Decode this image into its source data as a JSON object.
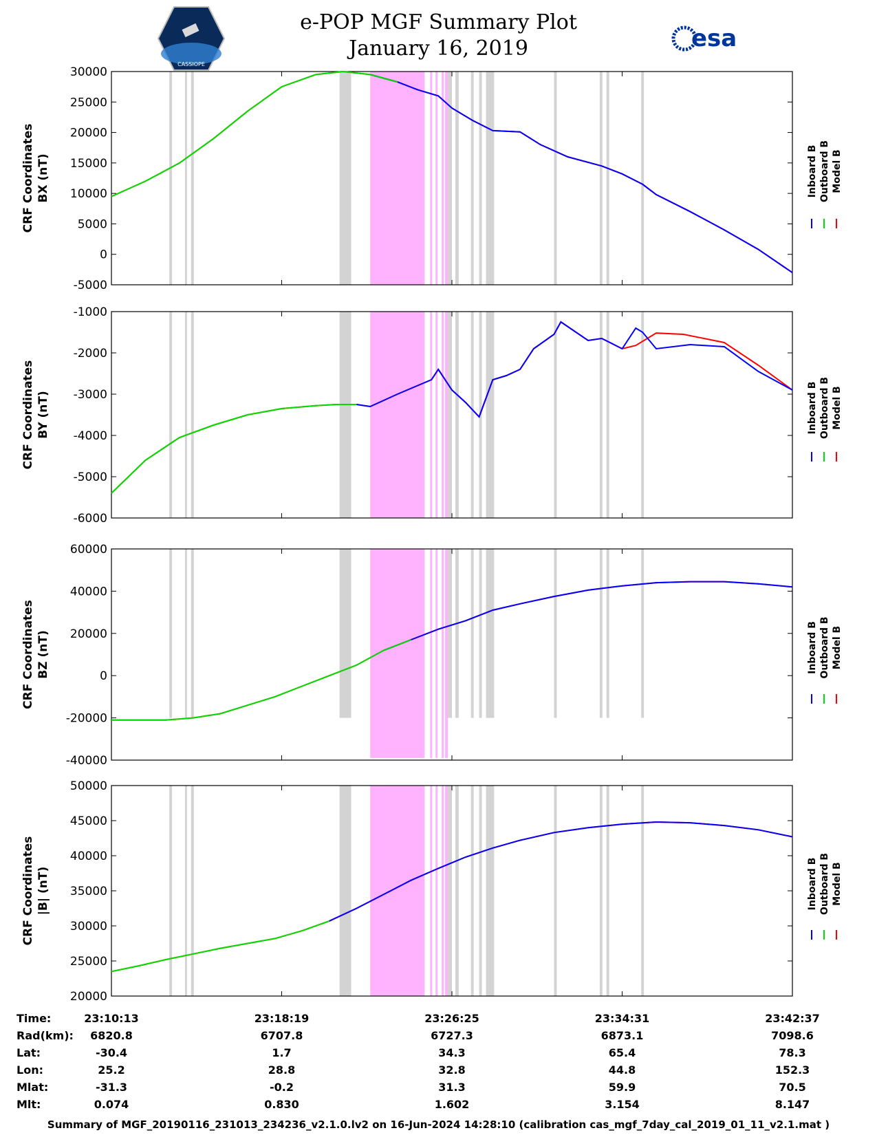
{
  "header": {
    "title": "e-POP MGF Summary Plot",
    "date": "January 16, 2019",
    "logo_left_text": "CASSIOPE",
    "logo_right_text": "esa"
  },
  "colors": {
    "inboard": "#0000ff",
    "outboard": "#00dd00",
    "model": "#ff0000",
    "gray_band": "#d3d3d3",
    "magenta_band": "#ffb3ff"
  },
  "legend": {
    "inboard": "Inboard B",
    "outboard": "Outboard B",
    "model": "Model B"
  },
  "chart_data": [
    {
      "type": "line",
      "ylabel_line1": "CRF Coordinates",
      "ylabel_line2": "BX (nT)",
      "ylim": [
        -5000,
        30000
      ],
      "yticks": [
        "30000",
        "25000",
        "20000",
        "15000",
        "10000",
        "5000",
        "0",
        "-5000"
      ],
      "ytick_values": [
        30000,
        25000,
        20000,
        15000,
        10000,
        5000,
        0,
        -5000
      ],
      "green_until": 0.42,
      "gray_band_to": "-5000",
      "model_deviation": [],
      "series_x": [
        0,
        0.05,
        0.1,
        0.15,
        0.2,
        0.25,
        0.3,
        0.34,
        0.38,
        0.42,
        0.45,
        0.48,
        0.5,
        0.53,
        0.56,
        0.6,
        0.63,
        0.67,
        0.72,
        0.75,
        0.78,
        0.8,
        0.85,
        0.9,
        0.95,
        1.0
      ],
      "series_y": [
        9500,
        12000,
        15000,
        19000,
        23500,
        27500,
        29500,
        30000,
        29500,
        28300,
        27000,
        26000,
        24000,
        22000,
        20300,
        20100,
        18000,
        16000,
        14500,
        13200,
        11500,
        9800,
        7000,
        4000,
        800,
        -3000
      ]
    },
    {
      "type": "line",
      "ylabel_line1": "CRF Coordinates",
      "ylabel_line2": "BY (nT)",
      "ylim": [
        -6000,
        -1000
      ],
      "yticks": [
        "-1000",
        "-2000",
        "-3000",
        "-4000",
        "-5000",
        "-6000"
      ],
      "ytick_values": [
        -1000,
        -2000,
        -3000,
        -4000,
        -5000,
        -6000
      ],
      "green_until": 0.36,
      "gray_band_to": "-6000",
      "model_deviation": [
        [
          0.77,
          -1820
        ],
        [
          0.8,
          -1520
        ],
        [
          0.84,
          -1550
        ],
        [
          0.9,
          -1750
        ],
        [
          0.95,
          -2300
        ]
      ],
      "series_x": [
        0,
        0.05,
        0.1,
        0.15,
        0.2,
        0.25,
        0.3,
        0.33,
        0.36,
        0.38,
        0.42,
        0.47,
        0.48,
        0.5,
        0.52,
        0.54,
        0.56,
        0.58,
        0.6,
        0.62,
        0.65,
        0.66,
        0.7,
        0.72,
        0.75,
        0.77,
        0.78,
        0.8,
        0.85,
        0.9,
        0.95,
        1.0
      ],
      "series_y": [
        -5400,
        -4600,
        -4050,
        -3750,
        -3500,
        -3350,
        -3280,
        -3250,
        -3250,
        -3300,
        -3000,
        -2650,
        -2400,
        -2900,
        -3200,
        -3550,
        -2650,
        -2550,
        -2400,
        -1900,
        -1550,
        -1250,
        -1700,
        -1650,
        -1900,
        -1400,
        -1500,
        -1900,
        -1800,
        -1850,
        -2450,
        -2900
      ]
    },
    {
      "type": "line",
      "ylabel_line1": "CRF Coordinates",
      "ylabel_line2": "BZ (nT)",
      "ylim": [
        -40000,
        60000
      ],
      "yticks": [
        "60000",
        "40000",
        "20000",
        "0",
        "-20000",
        "-40000"
      ],
      "ytick_values": [
        60000,
        40000,
        20000,
        0,
        -20000,
        -40000
      ],
      "green_until": 0.44,
      "gray_band_to": "-20000",
      "model_deviation": [],
      "series_x": [
        0,
        0.04,
        0.08,
        0.12,
        0.16,
        0.2,
        0.24,
        0.28,
        0.32,
        0.36,
        0.4,
        0.44,
        0.48,
        0.52,
        0.56,
        0.6,
        0.65,
        0.7,
        0.75,
        0.8,
        0.85,
        0.9,
        0.95,
        1.0
      ],
      "series_y": [
        -21000,
        -21000,
        -21000,
        -20000,
        -18000,
        -14000,
        -10000,
        -5000,
        0,
        5000,
        12000,
        17000,
        22000,
        26000,
        31000,
        34000,
        37500,
        40500,
        42500,
        44000,
        44500,
        44500,
        43500,
        42000
      ]
    },
    {
      "type": "line",
      "ylabel_line1": "CRF Coordinates",
      "ylabel_line2": "|B| (nT)",
      "ylim": [
        20000,
        50000
      ],
      "yticks": [
        "50000",
        "45000",
        "40000",
        "35000",
        "30000",
        "25000",
        "20000"
      ],
      "ytick_values": [
        50000,
        45000,
        40000,
        35000,
        30000,
        25000,
        20000
      ],
      "green_until": 0.34,
      "gray_band_to": "20000",
      "model_deviation": [],
      "series_x": [
        0,
        0.04,
        0.08,
        0.12,
        0.16,
        0.2,
        0.24,
        0.28,
        0.32,
        0.36,
        0.4,
        0.44,
        0.48,
        0.52,
        0.56,
        0.6,
        0.65,
        0.7,
        0.75,
        0.8,
        0.85,
        0.9,
        0.95,
        1.0
      ],
      "series_y": [
        23500,
        24300,
        25200,
        26000,
        26800,
        27500,
        28200,
        29300,
        30700,
        32500,
        34500,
        36500,
        38200,
        39800,
        41100,
        42200,
        43300,
        44000,
        44500,
        44800,
        44700,
        44300,
        43700,
        42700
      ]
    }
  ],
  "bands": {
    "gray": [
      [
        0.085,
        0.089
      ],
      [
        0.108,
        0.111
      ],
      [
        0.117,
        0.121
      ],
      [
        0.335,
        0.352
      ],
      [
        0.494,
        0.5
      ],
      [
        0.505,
        0.51
      ],
      [
        0.528,
        0.532
      ],
      [
        0.54,
        0.544
      ],
      [
        0.55,
        0.562
      ],
      [
        0.65,
        0.654
      ],
      [
        0.717,
        0.721
      ],
      [
        0.727,
        0.731
      ],
      [
        0.778,
        0.782
      ]
    ],
    "magenta": [
      [
        0.38,
        0.46
      ],
      [
        0.468,
        0.471
      ],
      [
        0.476,
        0.479
      ],
      [
        0.485,
        0.488
      ],
      [
        0.49,
        0.494
      ]
    ]
  },
  "x_axis": {
    "tick_positions": [
      0,
      0.25,
      0.5,
      0.75,
      1.0
    ],
    "rows": [
      {
        "label": "Time:",
        "values": [
          "23:10:13",
          "23:18:19",
          "23:26:25",
          "23:34:31",
          "23:42:37"
        ]
      },
      {
        "label": "Rad(km):",
        "values": [
          "6820.8",
          "6707.8",
          "6727.3",
          "6873.1",
          "7098.6"
        ]
      },
      {
        "label": "Lat:",
        "values": [
          "-30.4",
          "1.7",
          "34.3",
          "65.4",
          "78.3"
        ]
      },
      {
        "label": "Lon:",
        "values": [
          "25.2",
          "28.8",
          "32.8",
          "44.8",
          "152.3"
        ]
      },
      {
        "label": "Mlat:",
        "values": [
          "-31.3",
          "-0.2",
          "31.3",
          "59.9",
          "70.5"
        ]
      },
      {
        "label": "Mlt:",
        "values": [
          "0.074",
          "0.830",
          "1.602",
          "3.154",
          "8.147"
        ]
      }
    ]
  },
  "footer": "Summary of MGF_20190116_231013_234236_v2.1.0.lv2 on 16-Jun-2024 14:28:10 (calibration cas_mgf_7day_cal_2019_01_11_v2.1.mat )"
}
